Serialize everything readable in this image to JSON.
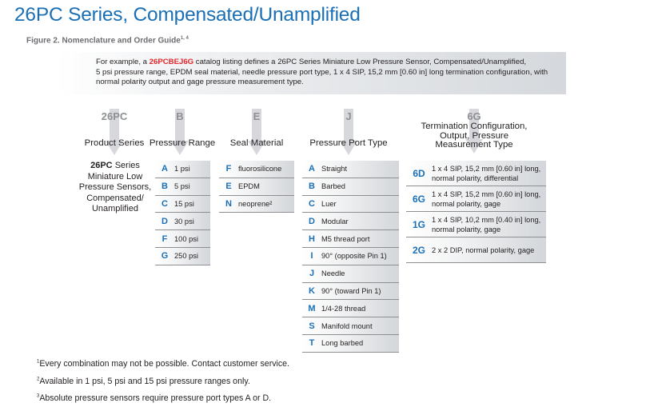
{
  "title": "26PC Series, Compensated/Unamplified",
  "caption": {
    "text": "Figure 2. Nomenclature and Order Guide",
    "sup": "1, 4"
  },
  "example": {
    "prefix": "For example, a ",
    "code": "26PCBEJ6G",
    "line1_rest": " catalog listing defines a 26PC Series Miniature Low Pressure Sensor, Compensated/Unamplified,",
    "line2": "5 psi pressure range, EPDM seal material, needle pressure port type, 1 x 4 SIP, 15,2 mm [0.60 in] long termination configuration, with",
    "line3": "normal polarity output and gage pressure measurement type."
  },
  "columns": [
    {
      "code": "26PC",
      "label": "Product Series"
    },
    {
      "code": "B",
      "label": "Pressure Range"
    },
    {
      "code": "E",
      "label": "Seal Material"
    },
    {
      "code": "J",
      "label": "Pressure Port Type"
    },
    {
      "code": "6G",
      "label_lines": [
        "Termination Configuration,",
        "Output, Pressure",
        "Measurement Type"
      ]
    }
  ],
  "product_series": {
    "bold": "26PC",
    "line1_rest": " Series",
    "lines": [
      "Miniature Low",
      "Pressure Sensors,",
      "Compensated/",
      "Unamplified"
    ]
  },
  "pressure_range": [
    {
      "k": "A",
      "v": "1 psi"
    },
    {
      "k": "B",
      "v": "5 psi"
    },
    {
      "k": "C",
      "v": "15 psi"
    },
    {
      "k": "D",
      "v": "30 psi"
    },
    {
      "k": "F",
      "v": "100 psi"
    },
    {
      "k": "G",
      "v": "250 psi"
    }
  ],
  "seal_material": [
    {
      "k": "F",
      "v": "fluorosilicone"
    },
    {
      "k": "E",
      "v": "EPDM"
    },
    {
      "k": "N",
      "v": "neoprene²"
    }
  ],
  "port_type": [
    {
      "k": "A",
      "v": "Straight"
    },
    {
      "k": "B",
      "v": "Barbed"
    },
    {
      "k": "C",
      "v": "Luer"
    },
    {
      "k": "D",
      "v": "Modular"
    },
    {
      "k": "H",
      "v": "M5 thread port"
    },
    {
      "k": "I",
      "v": "90° (opposite Pin 1)"
    },
    {
      "k": "J",
      "v": "Needle"
    },
    {
      "k": "K",
      "v": "90° (toward Pin 1)"
    },
    {
      "k": "M",
      "v": "1/4-28 thread"
    },
    {
      "k": "S",
      "v": "Manifold mount"
    },
    {
      "k": "T",
      "v": "Long barbed"
    }
  ],
  "termination": [
    {
      "k": "6D",
      "v1": "1 x 4 SIP, 15,2 mm [0.60 in] long,",
      "v2": "normal polarity, differential"
    },
    {
      "k": "6G",
      "v1": "1 x 4 SIP, 15,2 mm [0.60 in] long,",
      "v2": "normal polarity, gage"
    },
    {
      "k": "1G",
      "v1": "1 x 4 SIP, 10,2 mm [0.40 in] long,",
      "v2": "normal polarity, gage"
    },
    {
      "k": "2G",
      "v1": "2 x 2 DIP, normal polarity, gage",
      "v2": ""
    }
  ],
  "footnotes": [
    {
      "sup": "1",
      "text": "Every combination may not be possible. Contact customer service."
    },
    {
      "sup": "2",
      "text": "Available in 1 psi, 5 psi and 15 psi pressure ranges only."
    },
    {
      "sup": "3",
      "text": "Absolute pressure sensors require pressure port types A or D."
    }
  ]
}
